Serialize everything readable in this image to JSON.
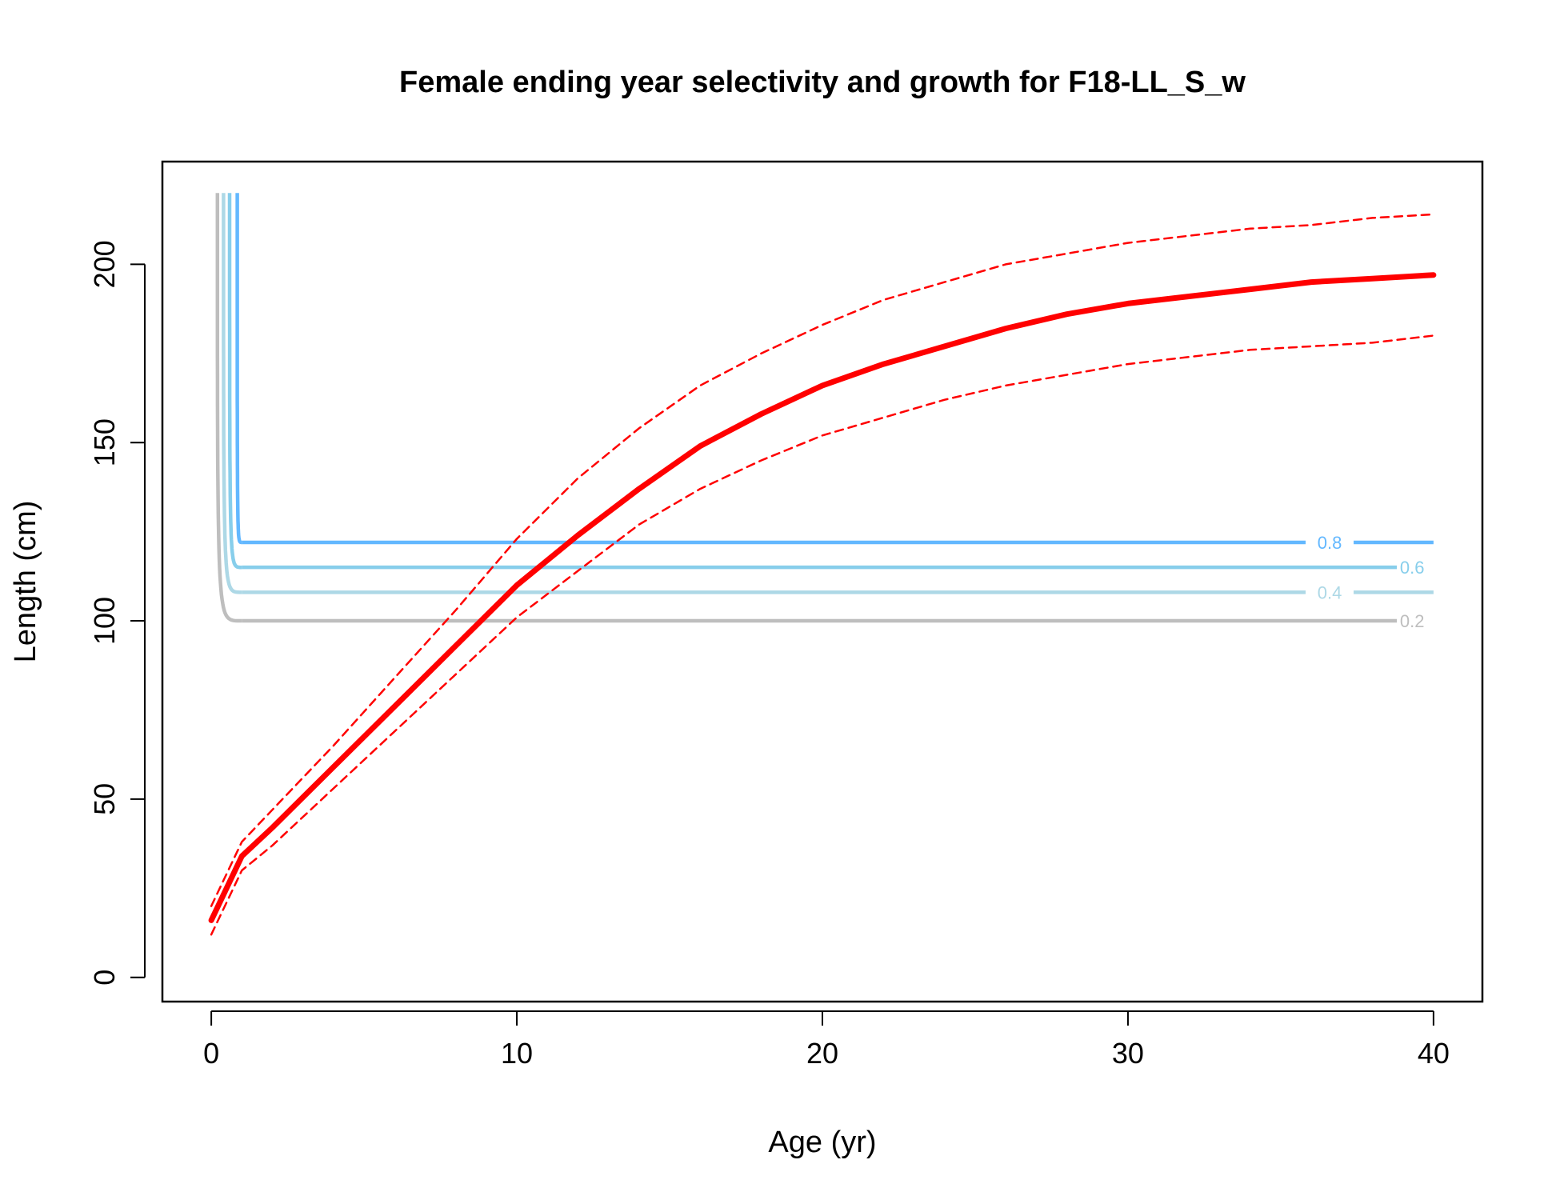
{
  "chart_data": {
    "type": "line",
    "title": "Female ending year selectivity and growth for F18-LL_S_w",
    "xlabel": "Age (yr)",
    "ylabel": "Length (cm)",
    "xlim": [
      -1.6,
      41.6
    ],
    "ylim": [
      -6.8,
      228.8
    ],
    "x_ticks": [
      0,
      10,
      20,
      30,
      40
    ],
    "y_ticks": [
      0,
      50,
      100,
      150,
      200
    ],
    "grid": false,
    "growth": {
      "color": "#ff0000",
      "mean": {
        "x": [
          0,
          1,
          2,
          4,
          6,
          8,
          10,
          12,
          14,
          16,
          18,
          20,
          22,
          24,
          26,
          28,
          30,
          32,
          34,
          36,
          38,
          40
        ],
        "y": [
          16,
          34,
          42,
          59,
          76,
          93,
          110,
          124,
          137,
          149,
          158,
          166,
          172,
          177,
          182,
          186,
          189,
          191,
          193,
          195,
          196,
          197
        ]
      },
      "upper_ci": {
        "x": [
          0,
          1,
          2,
          4,
          6,
          8,
          10,
          12,
          14,
          16,
          18,
          20,
          22,
          24,
          26,
          28,
          30,
          32,
          34,
          36,
          38,
          40
        ],
        "y": [
          20,
          38,
          47,
          65,
          84,
          103,
          123,
          140,
          154,
          166,
          175,
          183,
          190,
          195,
          200,
          203,
          206,
          208,
          210,
          211,
          213,
          214
        ]
      },
      "lower_ci": {
        "x": [
          0,
          1,
          2,
          4,
          6,
          8,
          10,
          12,
          14,
          16,
          18,
          20,
          22,
          24,
          26,
          28,
          30,
          32,
          34,
          36,
          38,
          40
        ],
        "y": [
          12,
          30,
          37,
          53,
          69,
          85,
          101,
          114,
          127,
          137,
          145,
          152,
          157,
          162,
          166,
          169,
          172,
          174,
          176,
          177,
          178,
          180
        ]
      }
    },
    "selectivity_contours": [
      {
        "level": "0.2",
        "color": "#bebebe",
        "length": 100,
        "steep_x": 1.0,
        "top_x": 0.2,
        "line_end_x": 38.8,
        "label_x": 39.3,
        "label_mid_line": false
      },
      {
        "level": "0.4",
        "color": "#add8e6",
        "length": 108,
        "steep_x": 1.0,
        "top_x": 0.4,
        "line_end_x": 40.0,
        "label_x": 36.6,
        "label_mid_line": true
      },
      {
        "level": "0.6",
        "color": "#87ceeb",
        "length": 115,
        "steep_x": 1.0,
        "top_x": 0.6,
        "line_end_x": 38.8,
        "label_x": 39.3,
        "label_mid_line": false
      },
      {
        "level": "0.8",
        "color": "#63b8ff",
        "length": 122,
        "steep_x": 1.0,
        "top_x": 0.85,
        "line_end_x": 40.0,
        "label_x": 36.6,
        "label_mid_line": true
      }
    ],
    "contour_top": 220
  }
}
